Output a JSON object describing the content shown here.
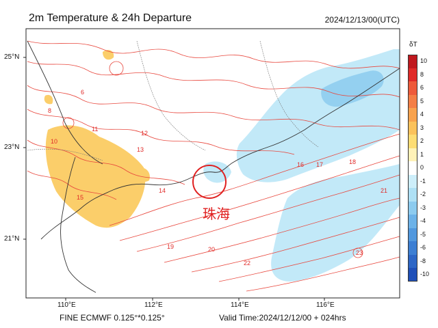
{
  "header": {
    "title": "2m Temperature & 24h Departure",
    "datetime": "2024/12/13/00(UTC)"
  },
  "axes": {
    "latitudes": [
      {
        "label": "25°N",
        "value": 25
      },
      {
        "label": "23°N",
        "value": 23
      },
      {
        "label": "21°N",
        "value": 21
      }
    ],
    "longitudes": [
      {
        "label": "110°E",
        "value": 110
      },
      {
        "label": "112°E",
        "value": 112
      },
      {
        "label": "114°E",
        "value": 114
      },
      {
        "label": "116°E",
        "value": 116
      }
    ]
  },
  "footer": {
    "model": "FINE ECMWF 0.125°*0.125°",
    "valid_time": "Valid Time:2024/12/12/00 + 024hrs"
  },
  "colorbar": {
    "title": "δT",
    "levels": [
      "10",
      "8",
      "6",
      "5",
      "4",
      "3",
      "2",
      "1",
      "0",
      "-1",
      "-2",
      "-3",
      "-4",
      "-5",
      "-6",
      "-8",
      "-10"
    ],
    "colors": [
      "#c0181e",
      "#e02a28",
      "#ee5a3a",
      "#f47e45",
      "#f8a24d",
      "#fbc25b",
      "#fddd74",
      "#fff2b8",
      "#ffffff",
      "#cdeefa",
      "#aee0f5",
      "#8ccbef",
      "#6cb2e8",
      "#5198de",
      "#3d7fd3",
      "#2d66c6",
      "#1f4fb8"
    ]
  },
  "contour_labels": [
    "8",
    "6",
    "10",
    "11",
    "12",
    "13",
    "14",
    "15",
    "16",
    "17",
    "18",
    "19",
    "20",
    "21",
    "22",
    "23"
  ],
  "annotation": {
    "label": "珠海",
    "color": "#e02020"
  },
  "colors": {
    "contour": "#e8463c",
    "warm_fill": "#fbc95a",
    "cold_fill": "#bfe8f8",
    "coast": "#333333"
  }
}
